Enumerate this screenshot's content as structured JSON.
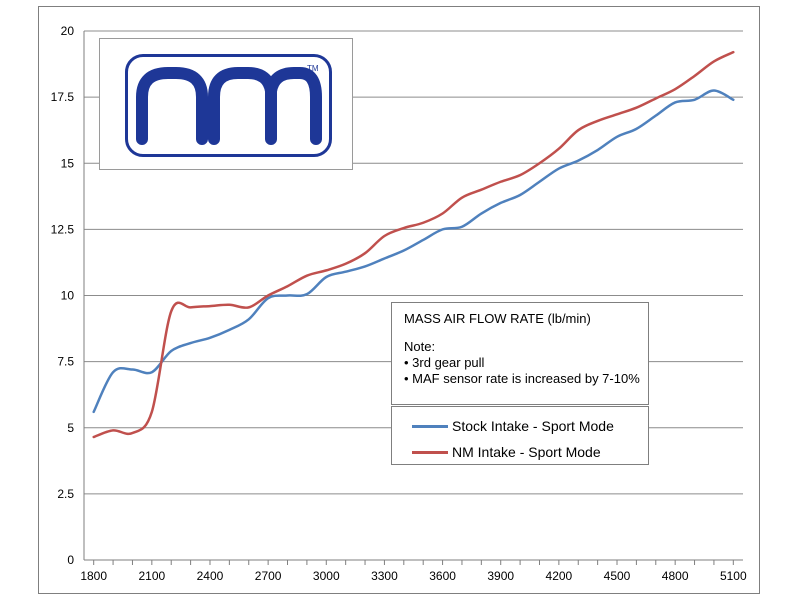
{
  "chart_data": {
    "type": "line",
    "title": "MASS AIR FLOW RATE (lb/min)",
    "notes": {
      "heading": "Note:",
      "items": [
        "• 3rd gear pull",
        "• MAF sensor rate is increased by 7-10%"
      ]
    },
    "xlabel": "",
    "ylabel": "",
    "xlim": [
      1750,
      5150
    ],
    "ylim": [
      0,
      20
    ],
    "x_ticks": [
      1800,
      2100,
      2400,
      2700,
      3000,
      3300,
      3600,
      3900,
      4200,
      4500,
      4800,
      5100
    ],
    "y_ticks": [
      0,
      2.5,
      5,
      7.5,
      10,
      12.5,
      15,
      17.5,
      20
    ],
    "y_tick_labels": [
      "0",
      "2.5",
      "5",
      "7.5",
      "10",
      "12.5",
      "15",
      "17.5",
      "20"
    ],
    "grid": "horizontal",
    "legend_position": "center-right",
    "series": [
      {
        "name": "Stock Intake - Sport Mode",
        "color": "#4f81bd",
        "points": [
          [
            1800,
            5.6
          ],
          [
            1900,
            7.1
          ],
          [
            2000,
            7.2
          ],
          [
            2100,
            7.1
          ],
          [
            2200,
            7.9
          ],
          [
            2300,
            8.2
          ],
          [
            2400,
            8.4
          ],
          [
            2500,
            8.7
          ],
          [
            2600,
            9.1
          ],
          [
            2700,
            9.9
          ],
          [
            2800,
            10.0
          ],
          [
            2900,
            10.05
          ],
          [
            3000,
            10.7
          ],
          [
            3100,
            10.9
          ],
          [
            3200,
            11.1
          ],
          [
            3300,
            11.4
          ],
          [
            3400,
            11.7
          ],
          [
            3500,
            12.1
          ],
          [
            3600,
            12.5
          ],
          [
            3700,
            12.6
          ],
          [
            3800,
            13.1
          ],
          [
            3900,
            13.5
          ],
          [
            4000,
            13.8
          ],
          [
            4100,
            14.3
          ],
          [
            4200,
            14.8
          ],
          [
            4300,
            15.1
          ],
          [
            4400,
            15.5
          ],
          [
            4500,
            16.0
          ],
          [
            4600,
            16.3
          ],
          [
            4700,
            16.8
          ],
          [
            4800,
            17.3
          ],
          [
            4900,
            17.4
          ],
          [
            5000,
            17.75
          ],
          [
            5100,
            17.4
          ]
        ]
      },
      {
        "name": "NM Intake - Sport Mode",
        "color": "#c0504d",
        "points": [
          [
            1800,
            4.65
          ],
          [
            1900,
            4.9
          ],
          [
            2000,
            4.8
          ],
          [
            2100,
            5.6
          ],
          [
            2200,
            9.4
          ],
          [
            2300,
            9.55
          ],
          [
            2400,
            9.6
          ],
          [
            2500,
            9.65
          ],
          [
            2600,
            9.55
          ],
          [
            2700,
            10.0
          ],
          [
            2800,
            10.35
          ],
          [
            2900,
            10.75
          ],
          [
            3000,
            10.95
          ],
          [
            3100,
            11.2
          ],
          [
            3200,
            11.6
          ],
          [
            3300,
            12.25
          ],
          [
            3400,
            12.55
          ],
          [
            3500,
            12.75
          ],
          [
            3600,
            13.1
          ],
          [
            3700,
            13.7
          ],
          [
            3800,
            14.0
          ],
          [
            3900,
            14.3
          ],
          [
            4000,
            14.55
          ],
          [
            4100,
            15.0
          ],
          [
            4200,
            15.55
          ],
          [
            4300,
            16.25
          ],
          [
            4400,
            16.6
          ],
          [
            4500,
            16.85
          ],
          [
            4600,
            17.1
          ],
          [
            4700,
            17.45
          ],
          [
            4800,
            17.8
          ],
          [
            4900,
            18.3
          ],
          [
            5000,
            18.85
          ],
          [
            5100,
            19.2
          ]
        ]
      }
    ]
  },
  "logo": {
    "text": "nm",
    "trademark": "TM",
    "color": "#1e3797"
  },
  "colors": {
    "gridline": "#8c8c8c",
    "axis": "#7f7f7f"
  }
}
